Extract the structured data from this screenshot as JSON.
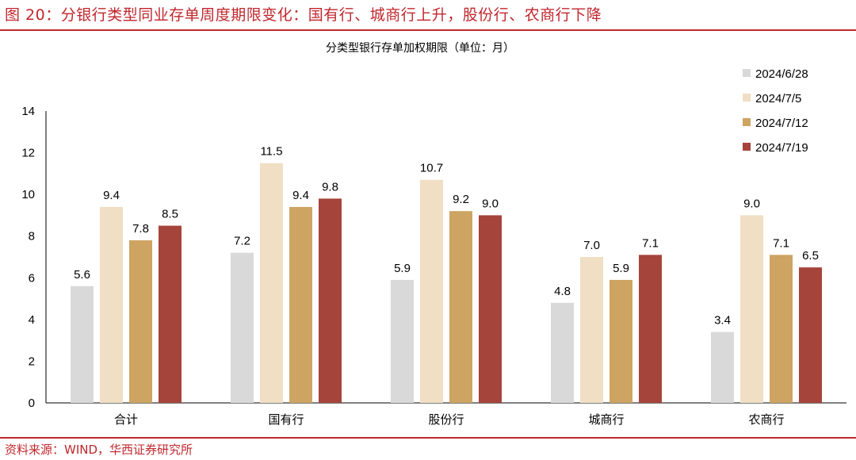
{
  "figure": {
    "title": "图 20：分银行类型同业存单周度期限变化：国有行、城商行上升，股份行、农商行下降",
    "source": "资料来源：WIND，华西证券研究所"
  },
  "chart_data": {
    "type": "bar",
    "title": "分类型银行存单加权期限（单位：月）",
    "xlabel": "",
    "ylabel": "",
    "categories": [
      "合计",
      "国有行",
      "股份行",
      "城商行",
      "农商行"
    ],
    "ylim": [
      0,
      14
    ],
    "yticks": [
      0,
      2,
      4,
      6,
      8,
      10,
      12,
      14
    ],
    "grid": false,
    "legend": "right",
    "series": [
      {
        "name": "2024/6/28",
        "color": "#d9d9d9",
        "values": [
          5.6,
          7.2,
          5.9,
          4.8,
          3.4
        ]
      },
      {
        "name": "2024/7/5",
        "color": "#f0dfc4",
        "values": [
          9.4,
          11.5,
          10.7,
          7.0,
          9.0
        ]
      },
      {
        "name": "2024/7/12",
        "color": "#cda462",
        "values": [
          7.8,
          9.4,
          9.2,
          5.9,
          7.1
        ]
      },
      {
        "name": "2024/7/19",
        "color": "#a5443a",
        "values": [
          8.5,
          9.8,
          9.0,
          7.1,
          6.5
        ]
      }
    ]
  }
}
